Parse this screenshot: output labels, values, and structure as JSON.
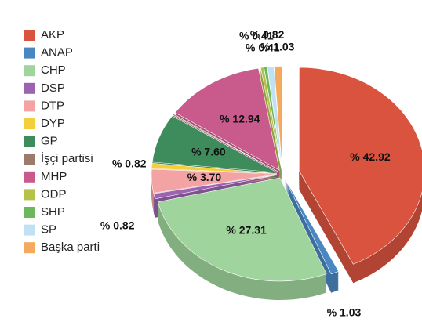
{
  "chart_data": {
    "type": "pie",
    "categories": [
      "AKP",
      "ANAP",
      "CHP",
      "DSP",
      "DTP",
      "DYP",
      "GP",
      "İşçi partisi",
      "MHP",
      "ODP",
      "SHP",
      "SP",
      "Başka parti"
    ],
    "values": [
      42.92,
      1.03,
      27.31,
      0.82,
      3.7,
      0.82,
      7.6,
      0.19,
      12.94,
      0.41,
      0.41,
      0.82,
      1.03
    ],
    "value_labels": [
      "% 42.92",
      "% 1.03",
      "% 27.31",
      "% 0.82",
      "% 3.70",
      "% 0.82",
      "% 7.60",
      null,
      "% 12.94",
      "% 0.41",
      "% 0.41",
      "% 0.82",
      "% 1.03"
    ],
    "colors": [
      "#d9533f",
      "#4a86c0",
      "#9fd49c",
      "#9b63b0",
      "#f3a3a3",
      "#f3cf3a",
      "#3e8c5c",
      "#9c7b6b",
      "#c95b8c",
      "#b5c24a",
      "#6db85c",
      "#bfe1f3",
      "#f5a95d"
    ],
    "legend": "left"
  }
}
